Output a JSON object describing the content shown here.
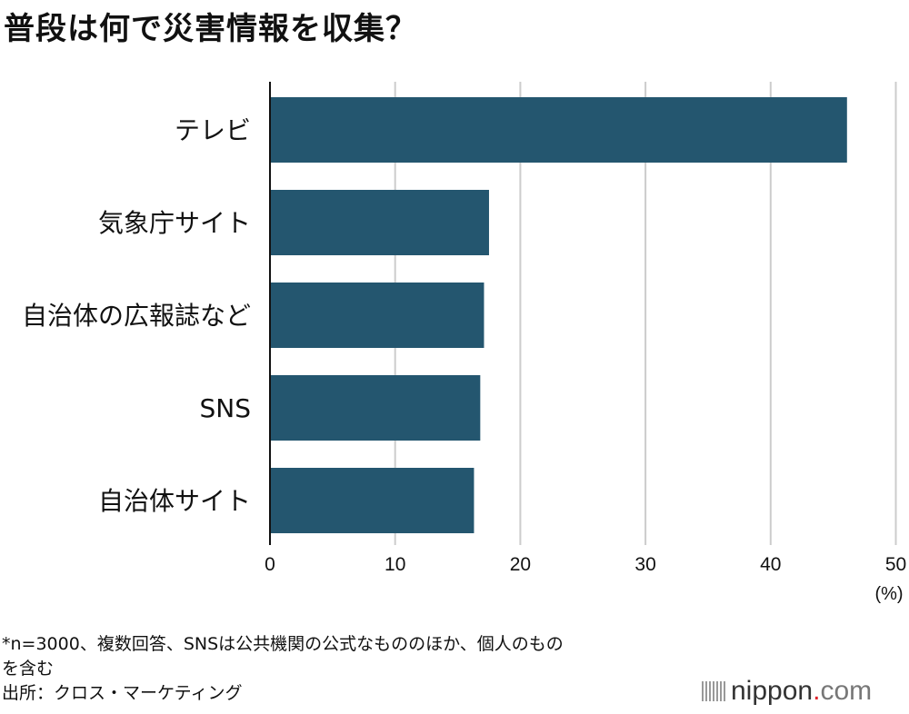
{
  "chart_data": {
    "type": "bar",
    "orientation": "horizontal",
    "title": "普段は何で災害情報を収集？",
    "categories": [
      "テレビ",
      "気象庁サイト",
      "自治体の広報誌など",
      "SNS",
      "自治体サイト"
    ],
    "values": [
      46.1,
      17.5,
      17.1,
      16.8,
      16.3
    ],
    "xlabel": "(%)",
    "ylabel": "",
    "xlim": [
      0,
      50
    ],
    "xticks": [
      0,
      10,
      20,
      30,
      40,
      50
    ],
    "grid": true,
    "bar_color": "#24566f",
    "grid_color": "#cccccc"
  },
  "notes": {
    "line1": "*n=3000、複数回答、SNSは公共機関の公式なもののほか、個人のもの",
    "line2": "を含む",
    "source": "出所：クロス・マーケティング"
  },
  "logo": {
    "text": "nippon",
    "dot": ".",
    "suffix": "com"
  }
}
